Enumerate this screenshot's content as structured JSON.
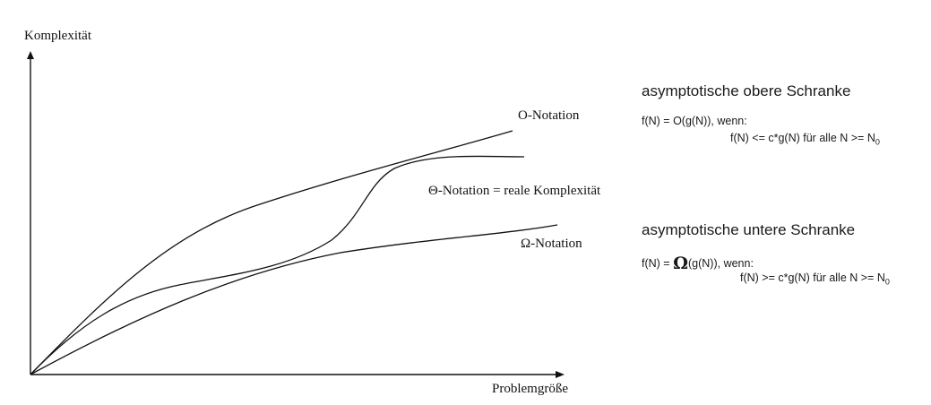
{
  "axes": {
    "y_label": "Komplexität",
    "x_label": "Problemgröße"
  },
  "curves": {
    "o_label": "O-Notation",
    "theta_label": "Θ-Notation = reale Komplexität",
    "omega_label": "Ω-Notation"
  },
  "upper": {
    "heading": "asymptotische obere Schranke",
    "line1": "f(N) = O(g(N)), wenn:",
    "line2_main": "f(N) <= c*g(N) für alle N >= N",
    "line2_sub": "0"
  },
  "lower": {
    "heading": "asymptotische untere Schranke",
    "line1_pre": "f(N) = ",
    "line1_symbol": "Ω",
    "line1_post": "(g(N)), wenn:",
    "line2_main": "f(N) >= c*g(N) für alle N >= N",
    "line2_sub": "0"
  },
  "colors": {
    "ink": "#111111"
  }
}
